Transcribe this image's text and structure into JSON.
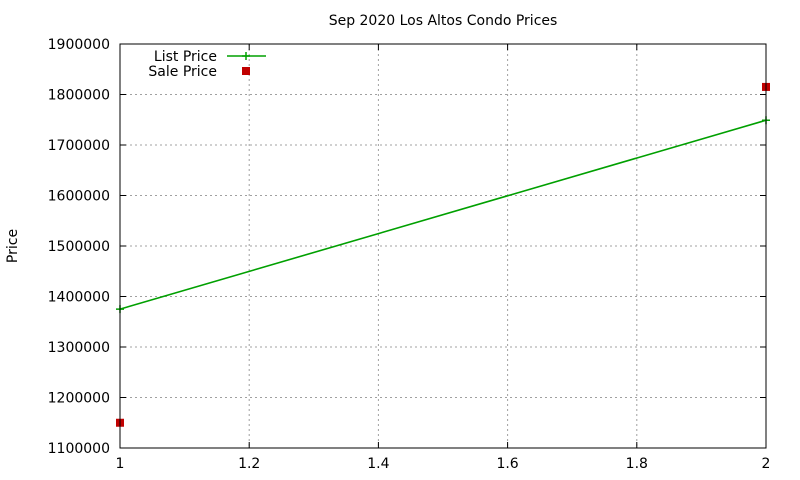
{
  "colors": {
    "list_price": "#00a000",
    "sale_price": "#c00000",
    "grid": "#a0a0a0",
    "axis": "#000000"
  },
  "chart_data": {
    "type": "line",
    "title": "Sep 2020 Los Altos Condo Prices",
    "xlabel": "",
    "ylabel": "Price",
    "xlim": [
      1,
      2
    ],
    "ylim": [
      1100000,
      1900000
    ],
    "x_ticks": [
      1,
      1.2,
      1.4,
      1.6,
      1.8,
      2
    ],
    "x_tick_labels": [
      "1",
      "1.2",
      "1.4",
      "1.6",
      "1.8",
      "2"
    ],
    "y_ticks": [
      1100000,
      1200000,
      1300000,
      1400000,
      1500000,
      1600000,
      1700000,
      1800000,
      1900000
    ],
    "y_tick_labels": [
      "1100000",
      "1200000",
      "1300000",
      "1400000",
      "1500000",
      "1600000",
      "1700000",
      "1800000",
      "1900000"
    ],
    "grid": true,
    "legend_position": "top-left",
    "series": [
      {
        "name": "List Price",
        "style": "linespoints",
        "marker": "plus",
        "color": "#00a000",
        "x": [
          1,
          2
        ],
        "y": [
          1375000,
          1749000
        ]
      },
      {
        "name": "Sale Price",
        "style": "points",
        "marker": "square",
        "color": "#c00000",
        "x": [
          1,
          2
        ],
        "y": [
          1150000,
          1815000
        ]
      }
    ]
  }
}
